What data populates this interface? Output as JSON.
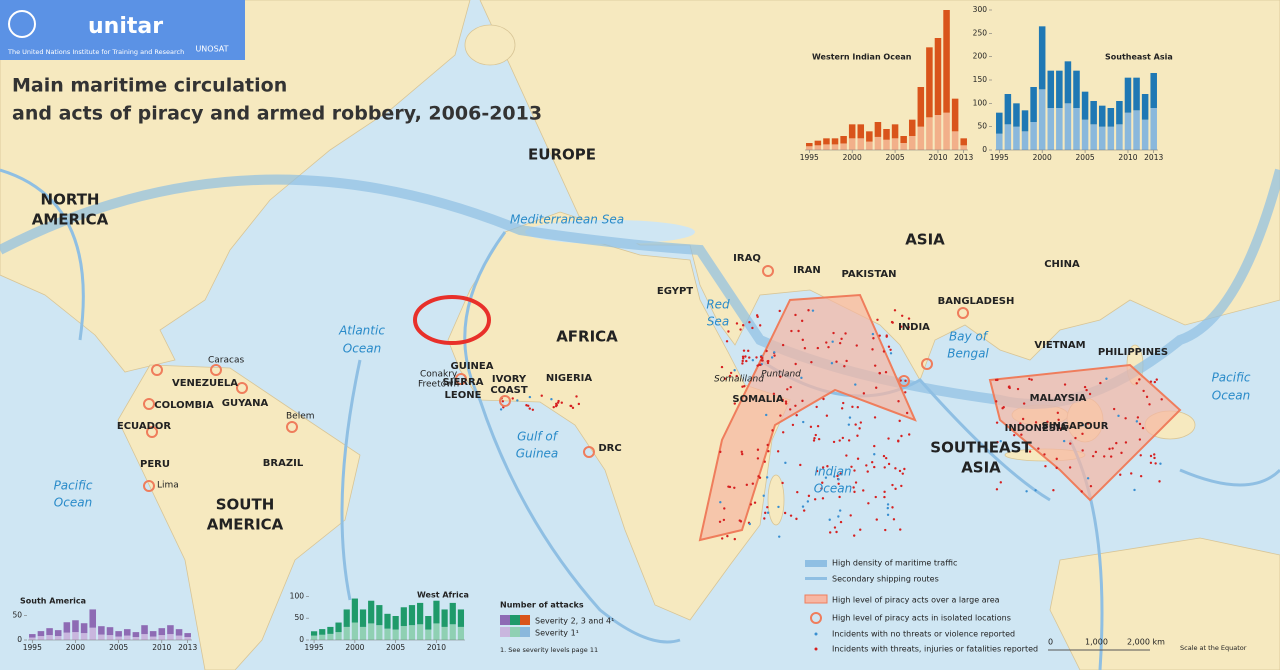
{
  "header": {
    "org": "The United Nations Institute for Training and Research",
    "brand": "unitar",
    "unit": "UNOSAT",
    "title": [
      "Main maritime circulation",
      "and acts of piracy and armed robbery, 2006-2013"
    ]
  },
  "map": {
    "continents": [
      [
        "NORTH",
        "AMERICA"
      ],
      [
        "SOUTH",
        "AMERICA"
      ],
      "EUROPE",
      "AFRICA",
      "ASIA",
      [
        "SOUTHEAST",
        "ASIA"
      ]
    ],
    "countries": [
      "VENEZUELA",
      "COLOMBIA",
      "GUYANA",
      "ECUADOR",
      "PERU",
      "BRAZIL",
      "GUINEA",
      [
        "SIERRA",
        "LEONE"
      ],
      [
        "IVORY",
        "COAST"
      ],
      "NIGERIA",
      "DRC",
      "EGYPT",
      "IRAQ",
      "IRAN",
      "PAKISTAN",
      "INDIA",
      "BANGLADESH",
      "CHINA",
      "VIETNAM",
      "PHILIPPINES",
      "MALAYSIA",
      "SINGAPOUR",
      "INDONESIA",
      "SOMALIA"
    ],
    "regions": [
      "Somaliland",
      "Puntland"
    ],
    "cities": [
      "Caracas",
      "Belem",
      "Lima",
      "Conakry",
      "Freetown"
    ],
    "waters": [
      [
        "Atlantic",
        "Ocean"
      ],
      [
        "Pacific",
        "Ocean"
      ],
      "Mediterranean Sea",
      [
        "Red",
        "Sea"
      ],
      [
        "Gulf of",
        "Guinea"
      ],
      [
        "Indian",
        "Ocean"
      ],
      [
        "Bay of",
        "Bengal"
      ],
      [
        "Pacific",
        "Ocean"
      ]
    ]
  },
  "legend": [
    "High density of maritime traffic",
    "Secondary shipping routes",
    "High level of piracy acts over a large area",
    "High level of piracy acts in isolated locations",
    "Incidents with no threats or violence reported",
    "Incidents with threats, injuries or fatalities reported"
  ],
  "scale": {
    "marks": [
      "0",
      "1,000",
      "2,000 km"
    ],
    "note": "Scale at the Equator"
  },
  "attacks_legend": {
    "title": "Number of attacks",
    "severe": "Severity 2, 3 and 4¹",
    "mild": "Severity 1¹",
    "note": "1. See severity levels page 11"
  },
  "chart_data": [
    {
      "type": "bar",
      "title": "Western Indian Ocean",
      "x": [
        1995,
        1996,
        1997,
        1998,
        1999,
        2000,
        2001,
        2002,
        2003,
        2004,
        2005,
        2006,
        2007,
        2008,
        2009,
        2010,
        2011,
        2012,
        2013
      ],
      "xticks": [
        1995,
        2000,
        2005,
        2010,
        2013
      ],
      "ylim": [
        0,
        300
      ],
      "stacked": true,
      "series": [
        {
          "color": "#f2b08a",
          "values": [
            8,
            10,
            12,
            12,
            14,
            25,
            25,
            18,
            28,
            22,
            25,
            15,
            30,
            50,
            70,
            75,
            80,
            40,
            10
          ]
        },
        {
          "color": "#d9541b",
          "values": [
            7,
            10,
            13,
            13,
            16,
            30,
            30,
            22,
            32,
            23,
            30,
            15,
            35,
            85,
            150,
            165,
            220,
            70,
            15
          ]
        }
      ]
    },
    {
      "type": "bar",
      "title": "Southeast Asia",
      "x": [
        1995,
        1996,
        1997,
        1998,
        1999,
        2000,
        2001,
        2002,
        2003,
        2004,
        2005,
        2006,
        2007,
        2008,
        2009,
        2010,
        2011,
        2012,
        2013
      ],
      "xticks": [
        1995,
        2000,
        2005,
        2010,
        2013
      ],
      "ylim": [
        0,
        300
      ],
      "yticks": [
        0,
        50,
        100,
        150,
        200,
        250,
        300
      ],
      "stacked": true,
      "series": [
        {
          "color": "#8ab8dc",
          "values": [
            35,
            55,
            50,
            40,
            60,
            130,
            90,
            90,
            100,
            90,
            65,
            55,
            50,
            50,
            55,
            80,
            85,
            65,
            90
          ]
        },
        {
          "color": "#1f78b4",
          "values": [
            45,
            65,
            50,
            45,
            75,
            135,
            80,
            80,
            90,
            80,
            60,
            50,
            45,
            40,
            50,
            75,
            70,
            55,
            75
          ]
        }
      ]
    },
    {
      "type": "bar",
      "title": "South America",
      "x": [
        1995,
        1996,
        1997,
        1998,
        1999,
        2000,
        2001,
        2002,
        2003,
        2004,
        2005,
        2006,
        2007,
        2008,
        2009,
        2010,
        2011,
        2012,
        2013
      ],
      "xticks": [
        1995,
        2000,
        2005,
        2010,
        2013
      ],
      "ylim": [
        0,
        75
      ],
      "yticks": [
        0,
        50
      ],
      "stacked": true,
      "series": [
        {
          "color": "#c9b6de",
          "values": [
            5,
            8,
            10,
            8,
            15,
            16,
            14,
            25,
            11,
            10,
            7,
            9,
            6,
            12,
            7,
            10,
            12,
            9,
            6
          ]
        },
        {
          "color": "#8e6bb4",
          "values": [
            7,
            10,
            14,
            12,
            21,
            24,
            20,
            37,
            17,
            16,
            11,
            13,
            10,
            18,
            11,
            14,
            18,
            13,
            8
          ]
        }
      ]
    },
    {
      "type": "bar",
      "title": "West Africa",
      "x": [
        1995,
        1996,
        1997,
        1998,
        1999,
        2000,
        2001,
        2002,
        2003,
        2004,
        2005,
        2006,
        2007,
        2008,
        2009,
        2010,
        2011,
        2012,
        2013
      ],
      "xticks": [
        1995,
        2000,
        2005,
        2010
      ],
      "ylim": [
        0,
        110
      ],
      "yticks": [
        0,
        50,
        100
      ],
      "stacked": true,
      "series": [
        {
          "color": "#8fd0b3",
          "values": [
            10,
            12,
            14,
            18,
            30,
            40,
            30,
            38,
            34,
            26,
            24,
            32,
            34,
            36,
            24,
            38,
            30,
            36,
            30
          ]
        },
        {
          "color": "#1f9a6a",
          "values": [
            10,
            13,
            16,
            22,
            40,
            55,
            40,
            52,
            46,
            34,
            31,
            43,
            46,
            49,
            31,
            52,
            40,
            49,
            40
          ]
        }
      ]
    }
  ]
}
